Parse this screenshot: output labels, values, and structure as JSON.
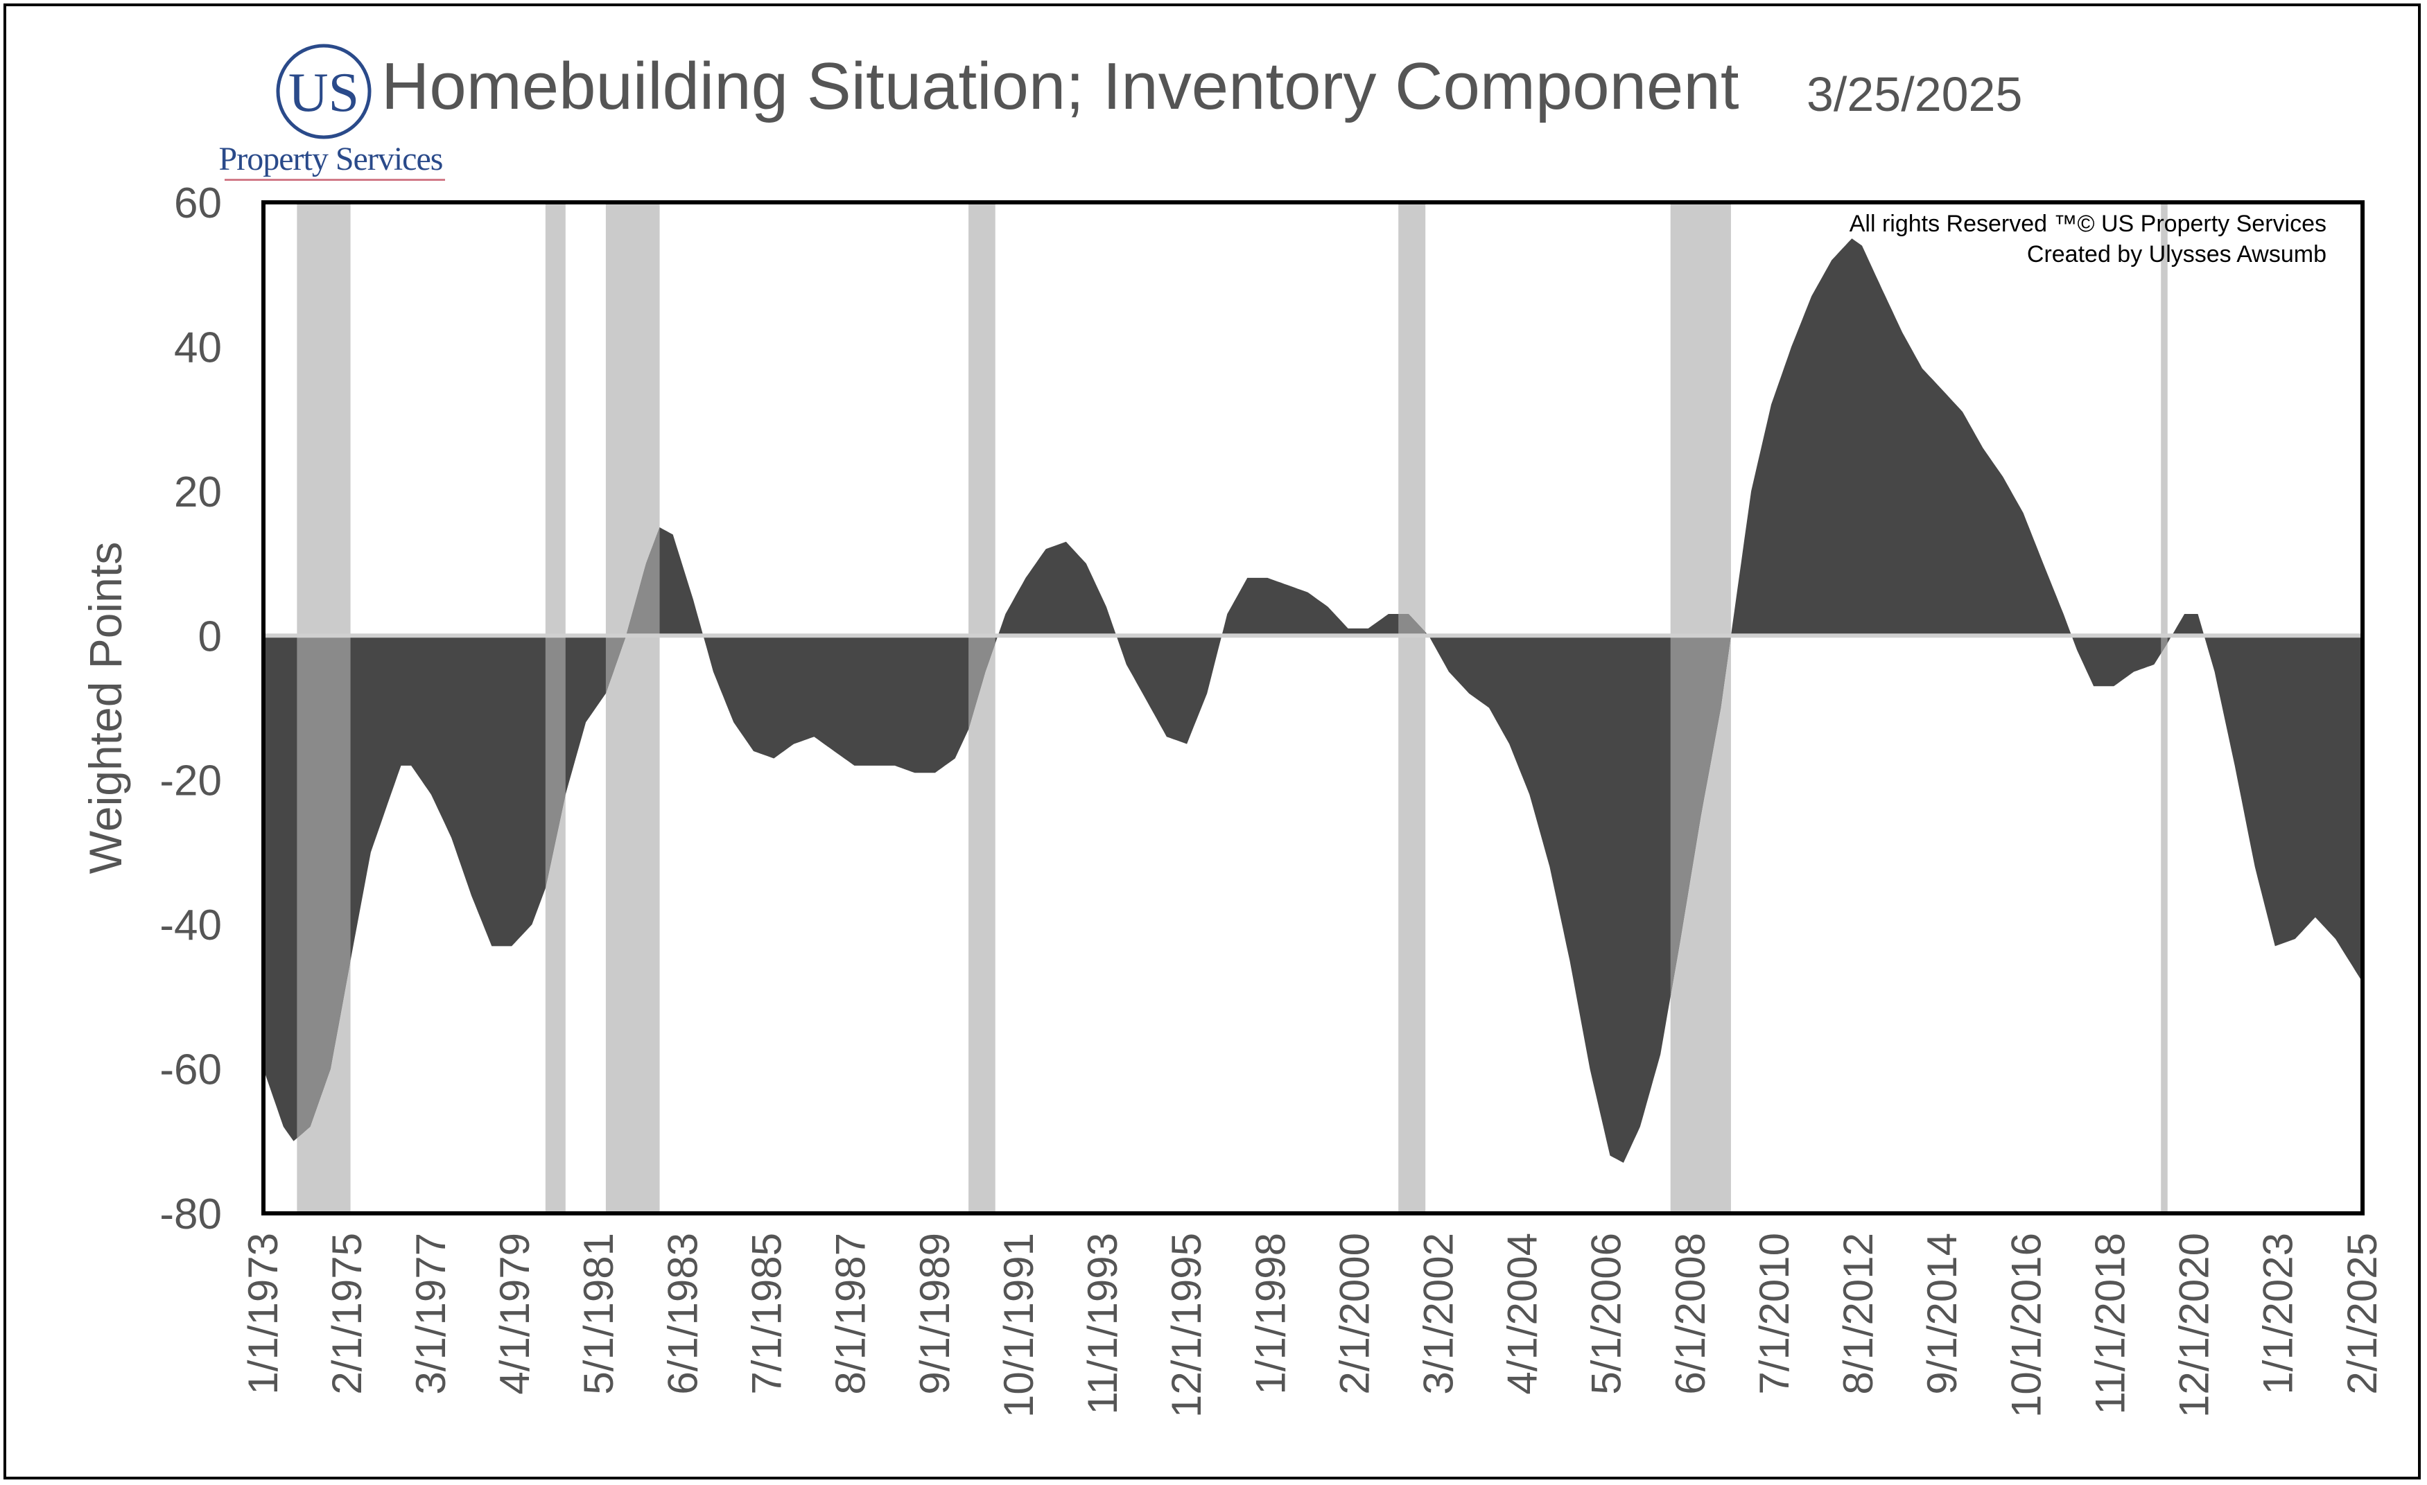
{
  "header": {
    "logo_initials": "US",
    "logo_name": "Property Services",
    "title": "Homebuilding Situation; Inventory Component",
    "date": "3/25/2025"
  },
  "chart_data": {
    "type": "area",
    "title": "Homebuilding Situation; Inventory Component",
    "ylabel": "Weighted Points",
    "xlabel": "",
    "ylim": [
      -80,
      60
    ],
    "xlim": [
      "1973-01-01",
      "2025-02-01"
    ],
    "yticks": [
      60,
      40,
      20,
      0,
      -20,
      -40,
      -60,
      -80
    ],
    "xticks": [
      "1/1/1973",
      "2/1/1975",
      "3/1/1977",
      "4/1/1979",
      "5/1/1981",
      "6/1/1983",
      "7/1/1985",
      "8/1/1987",
      "9/1/1989",
      "10/1/1991",
      "11/1/1993",
      "12/1/1995",
      "1/1/1998",
      "2/1/2000",
      "3/1/2002",
      "4/1/2004",
      "5/1/2006",
      "6/1/2008",
      "7/1/2010",
      "8/1/2012",
      "9/1/2014",
      "10/1/2016",
      "11/1/2018",
      "12/1/2020",
      "1/1/2023",
      "2/1/2025"
    ],
    "grid": false,
    "legend": "none",
    "colors": {
      "fill": "#474747",
      "recession_band": "#cbcbcb",
      "overlap_fill": "#8a8a8a",
      "zero_line": "#d0d0d0"
    },
    "annotations": [
      "All rights Reserved ™© US Property Services",
      "Created by Ulysses Awsumb"
    ],
    "recessions": [
      [
        "1973-11",
        "1975-03"
      ],
      [
        "1980-01",
        "1980-07"
      ],
      [
        "1981-07",
        "1982-11"
      ],
      [
        "1990-07",
        "1991-03"
      ],
      [
        "2001-03",
        "2001-11"
      ],
      [
        "2007-12",
        "2009-06"
      ],
      [
        "2020-02",
        "2020-04"
      ]
    ],
    "series": [
      {
        "points": [
          [
            "1973-01",
            -60
          ],
          [
            "1973-07",
            -68
          ],
          [
            "1973-10",
            -70
          ],
          [
            "1974-03",
            -68
          ],
          [
            "1974-09",
            -60
          ],
          [
            "1975-03",
            -45
          ],
          [
            "1975-09",
            -30
          ],
          [
            "1976-03",
            -22
          ],
          [
            "1976-06",
            -18
          ],
          [
            "1976-09",
            -18
          ],
          [
            "1977-03",
            -22
          ],
          [
            "1977-09",
            -28
          ],
          [
            "1978-03",
            -36
          ],
          [
            "1978-09",
            -43
          ],
          [
            "1979-03",
            -43
          ],
          [
            "1979-09",
            -40
          ],
          [
            "1980-01",
            -35
          ],
          [
            "1980-07",
            -22
          ],
          [
            "1981-01",
            -12
          ],
          [
            "1981-07",
            -8
          ],
          [
            "1982-01",
            0
          ],
          [
            "1982-07",
            10
          ],
          [
            "1982-11",
            15
          ],
          [
            "1983-03",
            14
          ],
          [
            "1983-09",
            5
          ],
          [
            "1984-03",
            -5
          ],
          [
            "1984-09",
            -12
          ],
          [
            "1985-03",
            -16
          ],
          [
            "1985-09",
            -17
          ],
          [
            "1986-03",
            -15
          ],
          [
            "1986-09",
            -14
          ],
          [
            "1987-03",
            -16
          ],
          [
            "1987-09",
            -18
          ],
          [
            "1988-03",
            -18
          ],
          [
            "1988-09",
            -18
          ],
          [
            "1989-03",
            -19
          ],
          [
            "1989-09",
            -19
          ],
          [
            "1990-03",
            -17
          ],
          [
            "1990-07",
            -13
          ],
          [
            "1990-12",
            -5
          ],
          [
            "1991-06",
            3
          ],
          [
            "1991-12",
            8
          ],
          [
            "1992-06",
            12
          ],
          [
            "1992-12",
            13
          ],
          [
            "1993-06",
            10
          ],
          [
            "1993-12",
            4
          ],
          [
            "1994-06",
            -4
          ],
          [
            "1994-12",
            -9
          ],
          [
            "1995-06",
            -14
          ],
          [
            "1995-12",
            -15
          ],
          [
            "1996-06",
            -8
          ],
          [
            "1996-12",
            3
          ],
          [
            "1997-06",
            8
          ],
          [
            "1997-12",
            8
          ],
          [
            "1998-06",
            7
          ],
          [
            "1998-12",
            6
          ],
          [
            "1999-06",
            4
          ],
          [
            "1999-12",
            1
          ],
          [
            "2000-06",
            1
          ],
          [
            "2000-12",
            3
          ],
          [
            "2001-06",
            3
          ],
          [
            "2001-12",
            0
          ],
          [
            "2002-06",
            -5
          ],
          [
            "2002-12",
            -8
          ],
          [
            "2003-06",
            -10
          ],
          [
            "2003-12",
            -15
          ],
          [
            "2004-06",
            -22
          ],
          [
            "2004-12",
            -32
          ],
          [
            "2005-06",
            -45
          ],
          [
            "2005-12",
            -60
          ],
          [
            "2006-06",
            -72
          ],
          [
            "2006-10",
            -73
          ],
          [
            "2007-03",
            -68
          ],
          [
            "2007-09",
            -58
          ],
          [
            "2008-03",
            -42
          ],
          [
            "2008-09",
            -25
          ],
          [
            "2009-03",
            -10
          ],
          [
            "2009-06",
            0
          ],
          [
            "2009-12",
            20
          ],
          [
            "2010-06",
            32
          ],
          [
            "2010-12",
            40
          ],
          [
            "2011-06",
            47
          ],
          [
            "2011-12",
            52
          ],
          [
            "2012-06",
            55
          ],
          [
            "2012-09",
            54
          ],
          [
            "2013-03",
            48
          ],
          [
            "2013-09",
            42
          ],
          [
            "2014-03",
            37
          ],
          [
            "2014-09",
            34
          ],
          [
            "2015-03",
            31
          ],
          [
            "2015-09",
            26
          ],
          [
            "2016-03",
            22
          ],
          [
            "2016-09",
            17
          ],
          [
            "2017-03",
            10
          ],
          [
            "2017-09",
            3
          ],
          [
            "2018-01",
            -2
          ],
          [
            "2018-06",
            -7
          ],
          [
            "2018-12",
            -7
          ],
          [
            "2019-06",
            -5
          ],
          [
            "2019-12",
            -4
          ],
          [
            "2020-04",
            -1
          ],
          [
            "2020-09",
            3
          ],
          [
            "2021-01",
            3
          ],
          [
            "2021-06",
            -5
          ],
          [
            "2021-12",
            -18
          ],
          [
            "2022-06",
            -32
          ],
          [
            "2022-12",
            -43
          ],
          [
            "2023-06",
            -42
          ],
          [
            "2023-12",
            -39
          ],
          [
            "2024-06",
            -42
          ],
          [
            "2025-02",
            -48
          ]
        ]
      }
    ]
  }
}
